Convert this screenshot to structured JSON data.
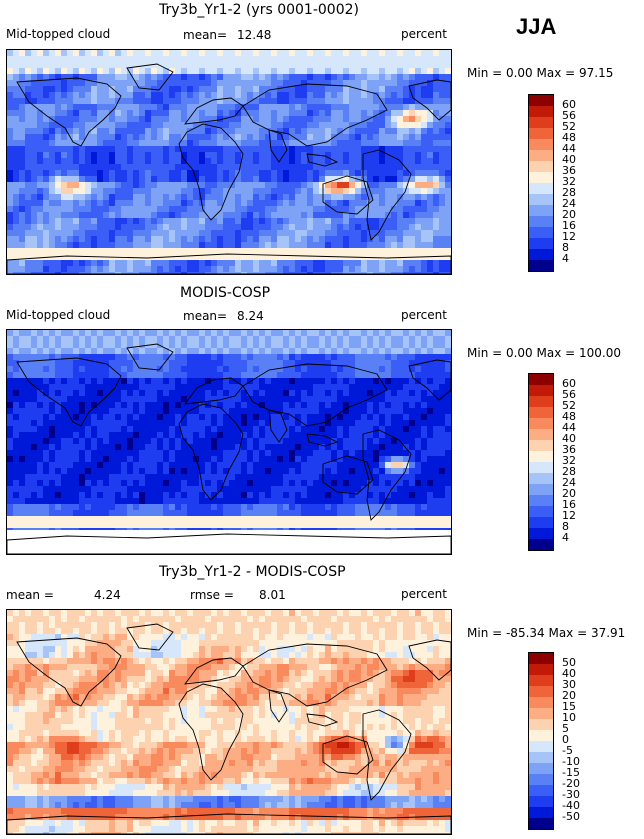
{
  "season": "JJA",
  "palettes": {
    "seq": [
      "#00008c",
      "#0018d8",
      "#1e3cf0",
      "#3a5ef6",
      "#5a80f5",
      "#7ea2f6",
      "#a6c4f8",
      "#d6e6fb",
      "#fff2dc",
      "#fdd2b0",
      "#fcad84",
      "#f98a5e",
      "#f0643a",
      "#de3e1c",
      "#c21a08",
      "#8c0000"
    ],
    "diff": [
      "#00008c",
      "#0018d8",
      "#1e3cf0",
      "#3a5ef6",
      "#5a80f5",
      "#7ea2f6",
      "#a6c4f8",
      "#d6e6fb",
      "#fff2dc",
      "#fdd2b0",
      "#fcad84",
      "#f98a5e",
      "#f0643a",
      "#de3e1c",
      "#c21a08",
      "#8c0000"
    ]
  },
  "panels": [
    {
      "title": "Try3b_Yr1-2 (yrs 0001-0002)",
      "left_label": "Mid-topped cloud",
      "mid_label": "mean=",
      "mid_value": "12.48",
      "right_label": "percent",
      "minmax": "Min =    0.00 Max =  97.15",
      "colorbar_labels": [
        "60",
        "56",
        "52",
        "48",
        "44",
        "40",
        "36",
        "32",
        "28",
        "24",
        "20",
        "16",
        "12",
        "8",
        "4"
      ],
      "field": "model"
    },
    {
      "title": "MODIS-COSP",
      "left_label": "Mid-topped cloud",
      "mid_label": "mean=",
      "mid_value": "8.24",
      "right_label": "percent",
      "minmax": "Min =    0.00 Max = 100.00",
      "colorbar_labels": [
        "60",
        "56",
        "52",
        "48",
        "44",
        "40",
        "36",
        "32",
        "28",
        "24",
        "20",
        "16",
        "12",
        "8",
        "4"
      ],
      "field": "obs"
    },
    {
      "title": "Try3b_Yr1-2 - MODIS-COSP",
      "left_label": "mean =",
      "left_value": "4.24",
      "mid_label": "rmse =",
      "mid_value": "8.01",
      "right_label": "percent",
      "minmax": "Min = -85.34 Max =  37.91",
      "colorbar_labels": [
        "50",
        "40",
        "30",
        "20",
        "15",
        "10",
        "5",
        "0",
        "-5",
        "-10",
        "-15",
        "-20",
        "-30",
        "-40",
        "-50"
      ],
      "field": "diff"
    }
  ]
}
